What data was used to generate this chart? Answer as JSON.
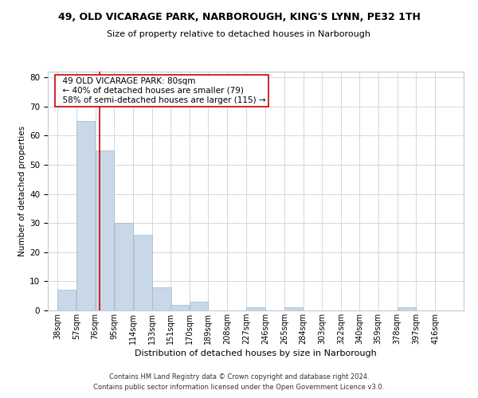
{
  "title": "49, OLD VICARAGE PARK, NARBOROUGH, KING'S LYNN, PE32 1TH",
  "subtitle": "Size of property relative to detached houses in Narborough",
  "xlabel": "Distribution of detached houses by size in Narborough",
  "ylabel": "Number of detached properties",
  "bar_color": "#c8d8e8",
  "bar_edgecolor": "#a0b8cc",
  "grid_color": "#d0d8e0",
  "annotation_text": "  49 OLD VICARAGE PARK: 80sqm\n  ← 40% of detached houses are smaller (79)\n  58% of semi-detached houses are larger (115) →",
  "red_line_x": 80,
  "footnote1": "Contains HM Land Registry data © Crown copyright and database right 2024.",
  "footnote2": "Contains public sector information licensed under the Open Government Licence v3.0.",
  "bin_labels": [
    "38sqm",
    "57sqm",
    "76sqm",
    "95sqm",
    "114sqm",
    "133sqm",
    "151sqm",
    "170sqm",
    "189sqm",
    "208sqm",
    "227sqm",
    "246sqm",
    "265sqm",
    "284sqm",
    "303sqm",
    "322sqm",
    "340sqm",
    "359sqm",
    "378sqm",
    "397sqm",
    "416sqm"
  ],
  "bin_edges": [
    38,
    57,
    76,
    95,
    114,
    133,
    151,
    170,
    189,
    208,
    227,
    246,
    265,
    284,
    303,
    322,
    340,
    359,
    378,
    397,
    416
  ],
  "bar_heights": [
    7,
    65,
    55,
    30,
    26,
    8,
    2,
    3,
    0,
    0,
    1,
    0,
    1,
    0,
    0,
    0,
    0,
    0,
    1,
    0,
    0
  ],
  "ylim": [
    0,
    82
  ],
  "yticks": [
    0,
    10,
    20,
    30,
    40,
    50,
    60,
    70,
    80
  ]
}
